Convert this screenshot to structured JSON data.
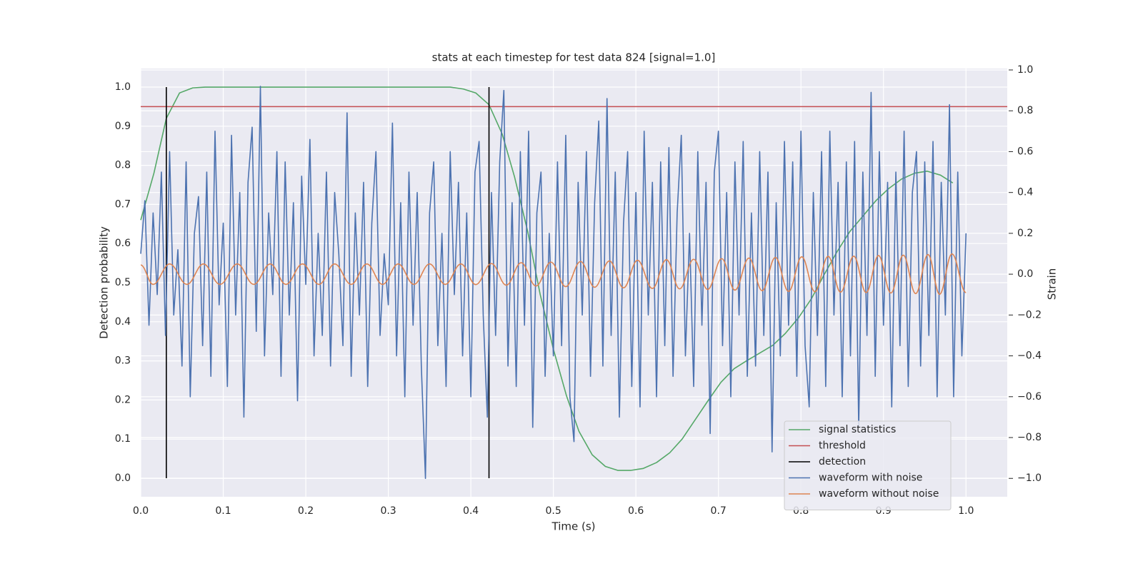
{
  "chart_data": {
    "type": "line",
    "title": "stats at each timestep for test data 824 [signal=1.0]",
    "xlabel": "Time (s)",
    "ylabel": "Detection probability",
    "y2label": "Strain",
    "xlim": [
      0,
      1.05
    ],
    "ylim": [
      -0.0475,
      1.0475
    ],
    "y2lim": [
      -1.09,
      1.007
    ],
    "xticks": [
      {
        "value": 0,
        "label": "0.0"
      },
      0.1,
      0.2,
      0.3,
      0.4,
      0.5,
      0.6,
      0.7,
      0.8,
      0.9,
      {
        "value": 1,
        "label": "1.0"
      }
    ],
    "yticks": [
      {
        "value": 0,
        "label": "0.0"
      },
      0.1,
      0.2,
      0.3,
      0.4,
      0.5,
      0.6,
      0.7,
      0.8,
      0.9,
      {
        "value": 1,
        "label": "1.0"
      }
    ],
    "y2ticks": [
      {
        "value": -1,
        "label": "−1.0"
      },
      {
        "value": -0.8,
        "label": "−0.8"
      },
      {
        "value": -0.6,
        "label": "−0.6"
      },
      {
        "value": -0.4,
        "label": "−0.4"
      },
      {
        "value": -0.2,
        "label": "−0.2"
      },
      {
        "value": 0,
        "label": "0.0"
      },
      0.2,
      0.4,
      0.6,
      0.8,
      {
        "value": 1,
        "label": "1.0"
      }
    ],
    "grid": true,
    "legend": "lower right",
    "series": [
      {
        "name": "signal statistics",
        "color": "#55a868",
        "axis": "y",
        "x": [
          0,
          0.016,
          0.031,
          0.047,
          0.063,
          0.078,
          0.094,
          0.109,
          0.125,
          0.141,
          0.156,
          0.172,
          0.188,
          0.203,
          0.219,
          0.234,
          0.25,
          0.266,
          0.281,
          0.297,
          0.313,
          0.328,
          0.344,
          0.359,
          0.375,
          0.391,
          0.406,
          0.422,
          0.438,
          0.453,
          0.469,
          0.484,
          0.5,
          0.516,
          0.531,
          0.547,
          0.563,
          0.578,
          0.594,
          0.609,
          0.625,
          0.641,
          0.656,
          0.672,
          0.688,
          0.703,
          0.719,
          0.734,
          0.75,
          0.766,
          0.781,
          0.797,
          0.813,
          0.828,
          0.844,
          0.859,
          0.875,
          0.891,
          0.906,
          0.922,
          0.938,
          0.953,
          0.969,
          0.984
        ],
        "values": [
          0.66,
          0.78,
          0.92,
          0.985,
          0.998,
          1.0,
          1.0,
          1.0,
          1.0,
          1.0,
          1.0,
          1.0,
          1.0,
          1.0,
          1.0,
          1.0,
          1.0,
          1.0,
          1.0,
          1.0,
          1.0,
          1.0,
          1.0,
          1.0,
          1.0,
          0.995,
          0.985,
          0.955,
          0.88,
          0.77,
          0.63,
          0.47,
          0.33,
          0.21,
          0.12,
          0.06,
          0.03,
          0.02,
          0.02,
          0.025,
          0.04,
          0.065,
          0.1,
          0.15,
          0.2,
          0.245,
          0.28,
          0.3,
          0.32,
          0.34,
          0.37,
          0.41,
          0.46,
          0.52,
          0.58,
          0.63,
          0.67,
          0.71,
          0.74,
          0.765,
          0.78,
          0.785,
          0.775,
          0.755
        ]
      },
      {
        "name": "threshold",
        "color": "#c44e52",
        "axis": "y",
        "kind": "hline",
        "values": [
          0.95
        ]
      },
      {
        "name": "detection",
        "color": "#000000",
        "axis": "y",
        "x": [
          0.031,
          0.031,
          null,
          0.422,
          0.422
        ],
        "values": [
          0,
          1,
          null,
          0,
          1
        ]
      },
      {
        "name": "waveform with noise",
        "color": "#4c72b0",
        "axis": "y2",
        "x": [
          0,
          0.005,
          0.01,
          0.015,
          0.02,
          0.025,
          0.03,
          0.035,
          0.04,
          0.045,
          0.05,
          0.055,
          0.06,
          0.065,
          0.07,
          0.075,
          0.08,
          0.085,
          0.09,
          0.095,
          0.1,
          0.105,
          0.11,
          0.115,
          0.12,
          0.125,
          0.13,
          0.135,
          0.14,
          0.145,
          0.15,
          0.155,
          0.16,
          0.165,
          0.17,
          0.175,
          0.18,
          0.185,
          0.19,
          0.195,
          0.2,
          0.205,
          0.21,
          0.215,
          0.22,
          0.225,
          0.23,
          0.235,
          0.24,
          0.245,
          0.25,
          0.255,
          0.26,
          0.265,
          0.27,
          0.275,
          0.28,
          0.285,
          0.29,
          0.295,
          0.3,
          0.305,
          0.31,
          0.315,
          0.32,
          0.325,
          0.33,
          0.335,
          0.34,
          0.345,
          0.35,
          0.355,
          0.36,
          0.365,
          0.37,
          0.375,
          0.38,
          0.385,
          0.39,
          0.395,
          0.4,
          0.405,
          0.41,
          0.415,
          0.42,
          0.425,
          0.43,
          0.435,
          0.44,
          0.445,
          0.45,
          0.455,
          0.46,
          0.465,
          0.47,
          0.475,
          0.48,
          0.485,
          0.49,
          0.495,
          0.5,
          0.505,
          0.51,
          0.515,
          0.52,
          0.525,
          0.53,
          0.535,
          0.54,
          0.545,
          0.55,
          0.555,
          0.56,
          0.565,
          0.57,
          0.575,
          0.58,
          0.585,
          0.59,
          0.595,
          0.6,
          0.605,
          0.61,
          0.615,
          0.62,
          0.625,
          0.63,
          0.635,
          0.64,
          0.645,
          0.65,
          0.655,
          0.66,
          0.665,
          0.67,
          0.675,
          0.68,
          0.685,
          0.69,
          0.695,
          0.7,
          0.705,
          0.71,
          0.715,
          0.72,
          0.725,
          0.73,
          0.735,
          0.74,
          0.745,
          0.75,
          0.755,
          0.76,
          0.765,
          0.77,
          0.775,
          0.78,
          0.785,
          0.79,
          0.795,
          0.8,
          0.805,
          0.81,
          0.815,
          0.82,
          0.825,
          0.83,
          0.835,
          0.84,
          0.845,
          0.85,
          0.855,
          0.86,
          0.865,
          0.87,
          0.875,
          0.88,
          0.885,
          0.89,
          0.895,
          0.9,
          0.905,
          0.91,
          0.915,
          0.92,
          0.925,
          0.93,
          0.935,
          0.94,
          0.945,
          0.95,
          0.955,
          0.96,
          0.965,
          0.97,
          0.975,
          0.98,
          0.985,
          0.99,
          0.995,
          1.0
        ],
        "values": [
          0.1,
          0.36,
          -0.25,
          0.3,
          -0.1,
          0.5,
          -0.3,
          0.6,
          -0.2,
          0.12,
          -0.45,
          0.55,
          -0.6,
          0.2,
          0.38,
          -0.35,
          0.5,
          -0.5,
          0.7,
          -0.15,
          0.25,
          -0.55,
          0.68,
          -0.2,
          0.4,
          -0.7,
          0.45,
          0.72,
          -0.28,
          0.92,
          -0.4,
          0.3,
          -0.1,
          0.6,
          -0.5,
          0.55,
          -0.2,
          0.35,
          -0.62,
          0.48,
          -0.05,
          0.66,
          -0.4,
          0.2,
          -0.3,
          0.5,
          -0.45,
          0.4,
          0.1,
          -0.35,
          0.79,
          -0.5,
          0.3,
          -0.2,
          0.45,
          -0.55,
          0.25,
          0.6,
          -0.3,
          0.1,
          -0.15,
          0.74,
          -0.4,
          0.35,
          -0.6,
          0.5,
          -0.25,
          0.4,
          -0.45,
          -1.0,
          0.3,
          0.55,
          -0.35,
          0.2,
          -0.55,
          0.6,
          -0.1,
          0.45,
          -0.4,
          0.3,
          -0.6,
          0.5,
          0.65,
          -0.2,
          -0.7,
          0.4,
          -0.3,
          0.55,
          0.9,
          -0.45,
          0.35,
          -0.55,
          0.6,
          -0.25,
          0.7,
          -0.75,
          0.3,
          0.5,
          -0.5,
          0.2,
          -0.4,
          0.55,
          -0.35,
          0.68,
          -0.6,
          -0.82,
          0.45,
          -0.2,
          0.6,
          -0.5,
          0.35,
          0.75,
          -0.45,
          0.86,
          -0.3,
          0.5,
          -0.7,
          0.25,
          0.6,
          -0.55,
          0.4,
          -0.65,
          0.7,
          -0.2,
          0.45,
          -0.6,
          0.55,
          -0.35,
          0.62,
          -0.5,
          0.3,
          0.68,
          -0.4,
          0.2,
          -0.55,
          0.6,
          -0.25,
          0.45,
          -0.78,
          0.5,
          0.7,
          -0.35,
          0.4,
          -0.6,
          0.55,
          -0.2,
          0.65,
          -0.5,
          0.3,
          -0.45,
          0.6,
          -0.3,
          0.5,
          -0.87,
          0.35,
          -0.4,
          0.65,
          -0.25,
          0.55,
          -0.5,
          0.7,
          -0.35,
          -0.65,
          0.4,
          -0.3,
          0.6,
          -0.55,
          0.7,
          -0.2,
          0.45,
          -0.6,
          0.55,
          -0.4,
          0.65,
          -0.75,
          0.5,
          -0.3,
          0.89,
          -0.5,
          0.6,
          -0.25,
          0.45,
          -0.65,
          0.5,
          -0.35,
          0.7,
          -0.55,
          0.4,
          0.6,
          -0.45,
          0.55,
          -0.3,
          0.65,
          -0.6,
          0.45,
          -0.2,
          0.83,
          -0.6,
          0.5,
          -0.4,
          0.2
        ]
      },
      {
        "name": "waveform without noise",
        "color": "#dd8452",
        "axis": "y2",
        "curve": "smooth",
        "x": [
          0,
          0.015,
          0.035,
          0.056,
          0.076,
          0.096,
          0.117,
          0.137,
          0.157,
          0.176,
          0.196,
          0.216,
          0.235,
          0.255,
          0.274,
          0.293,
          0.312,
          0.331,
          0.35,
          0.369,
          0.388,
          0.406,
          0.425,
          0.443,
          0.461,
          0.479,
          0.497,
          0.515,
          0.533,
          0.55,
          0.568,
          0.585,
          0.602,
          0.62,
          0.637,
          0.653,
          0.67,
          0.687,
          0.704,
          0.72,
          0.737,
          0.753,
          0.769,
          0.785,
          0.801,
          0.817,
          0.833,
          0.848,
          0.864,
          0.879,
          0.894,
          0.909,
          0.924,
          0.939,
          0.954,
          0.968,
          0.983,
          1.0
        ],
        "values": [
          0.045,
          -0.05,
          0.05,
          -0.05,
          0.05,
          -0.05,
          0.05,
          -0.05,
          0.05,
          -0.05,
          0.05,
          -0.05,
          0.05,
          -0.05,
          0.05,
          -0.05,
          0.05,
          -0.05,
          0.05,
          -0.05,
          0.05,
          -0.051,
          0.052,
          -0.054,
          0.056,
          -0.058,
          0.059,
          -0.061,
          0.062,
          -0.064,
          0.065,
          -0.067,
          0.068,
          -0.07,
          0.071,
          -0.072,
          0.073,
          -0.075,
          0.076,
          -0.078,
          0.079,
          -0.081,
          0.082,
          -0.084,
          0.085,
          -0.086,
          0.087,
          -0.088,
          0.088,
          -0.09,
          0.091,
          -0.092,
          0.093,
          -0.095,
          0.096,
          -0.098,
          0.099,
          -0.09
        ]
      }
    ]
  }
}
